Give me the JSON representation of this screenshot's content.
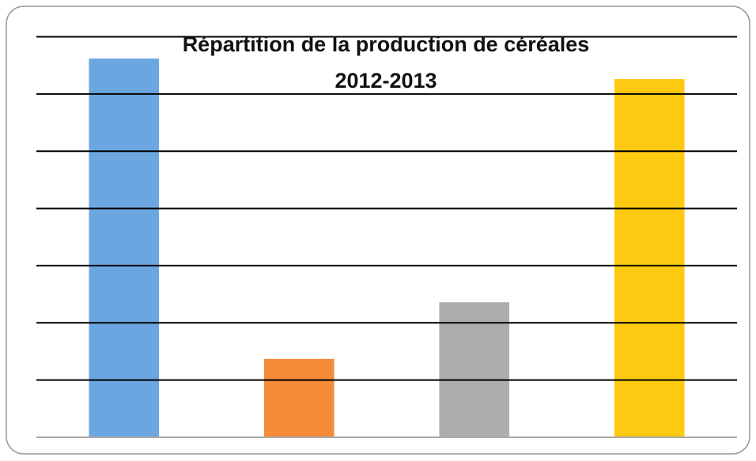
{
  "chart_data": {
    "type": "bar",
    "title": [
      "Répartition de la production  de céréales",
      "2012-2013"
    ],
    "categories": [
      null,
      null,
      null,
      null
    ],
    "values": [
      6.62,
      1.37,
      2.36,
      6.26
    ],
    "colors": [
      "#6ca6e0",
      "#f68b3a",
      "#adadad",
      "#fdc911"
    ],
    "ylim": [
      0,
      7
    ],
    "yticks": [
      0,
      1,
      2,
      3,
      4,
      5,
      6,
      7
    ],
    "grid": true
  }
}
